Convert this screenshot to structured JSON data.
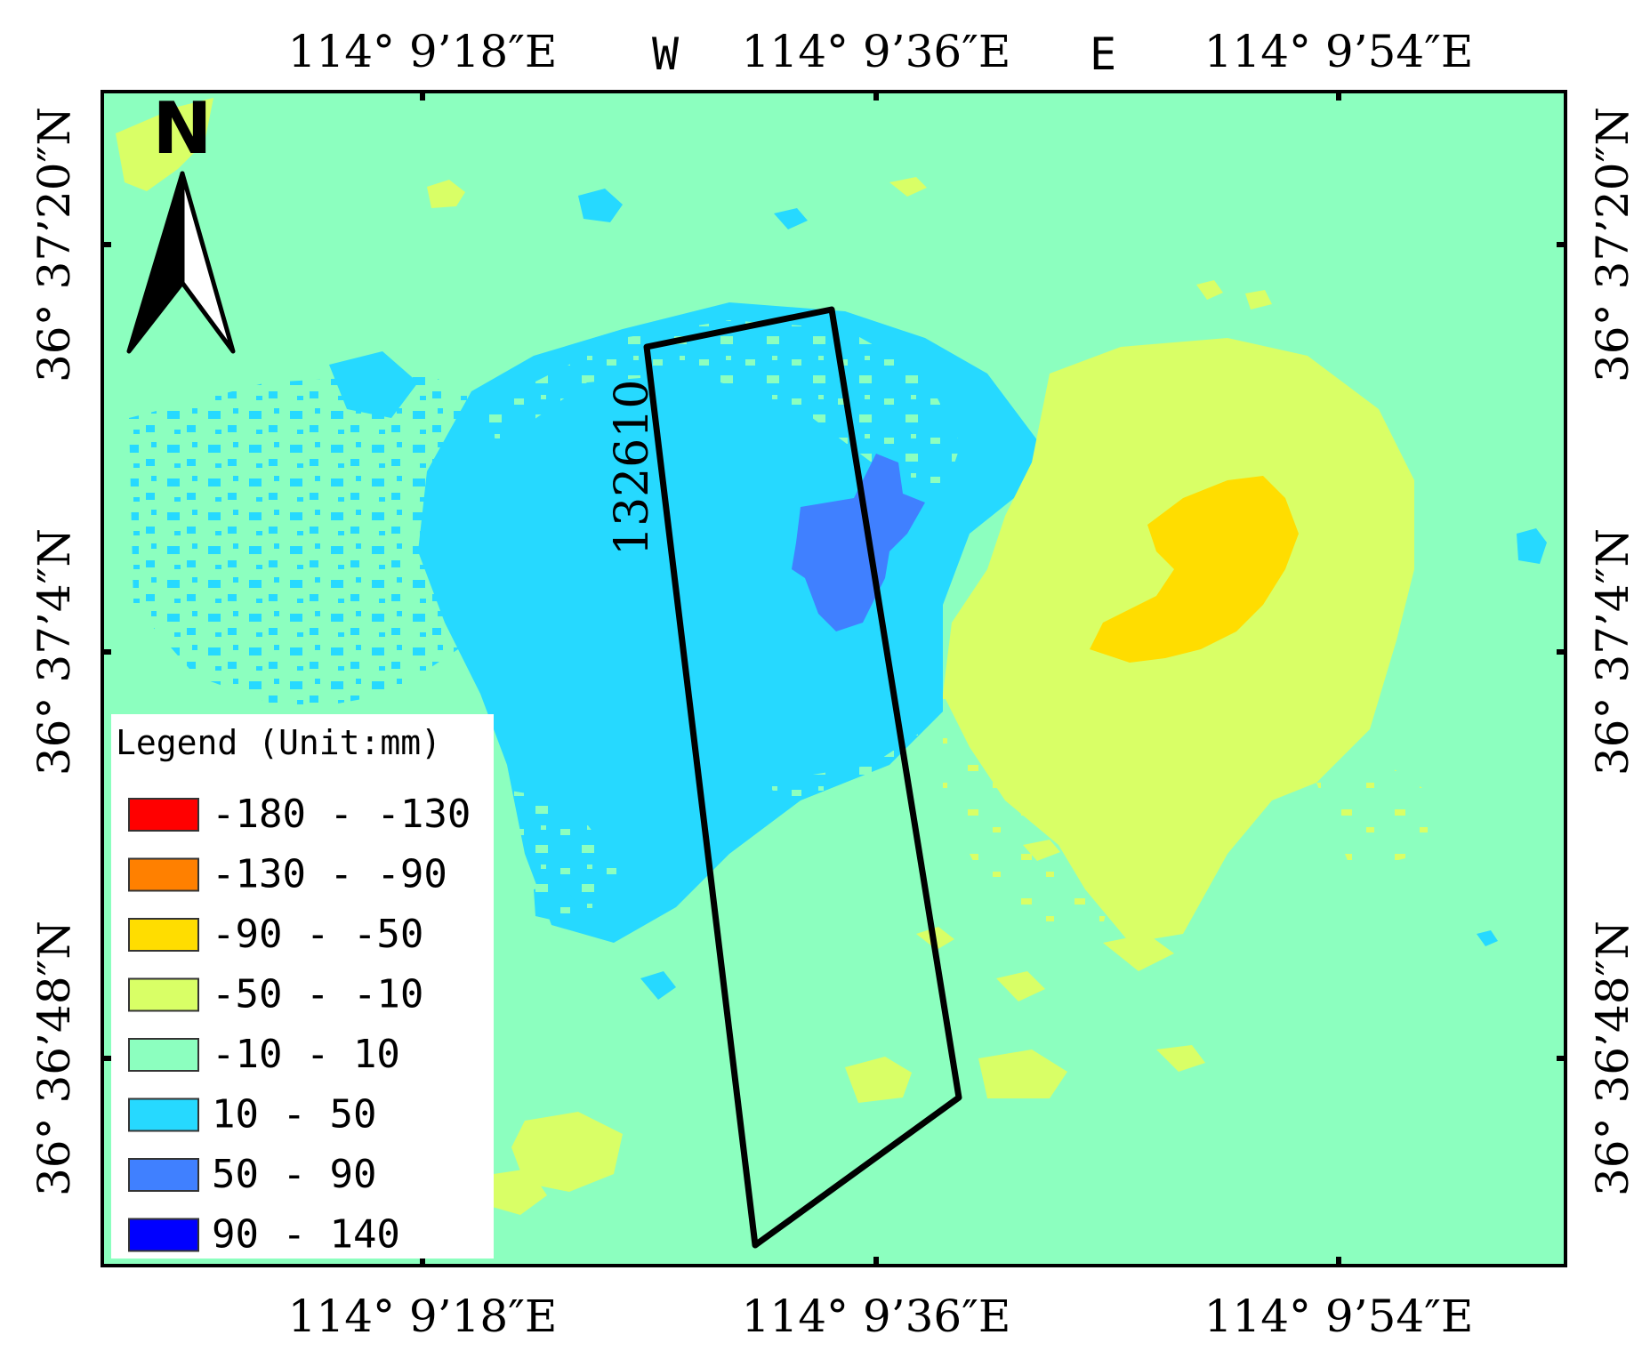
{
  "map": {
    "north_label": "N",
    "panel_id": "132610",
    "west_label": "W",
    "east_label": "E",
    "top_ticks": [
      "114° 9’18″E",
      "114° 9’36″E",
      "114° 9’54″E"
    ],
    "bottom_ticks": [
      "114° 9’18″E",
      "114° 9’36″E",
      "114° 9’54″E"
    ],
    "left_ticks": [
      "36° 37’20″N",
      "36° 37’4″N",
      "36° 36’48″N"
    ],
    "right_ticks": [
      "36° 37’20″N",
      "36° 37’4″N",
      "36° 36’48″N"
    ],
    "colors": {
      "background_class": "#8cffbf",
      "frame": "#000000"
    }
  },
  "legend": {
    "title": "Legend (Unit:mm)",
    "items": [
      {
        "label": "-180 - -130",
        "color": "#ff0000"
      },
      {
        "label": "-130 - -90",
        "color": "#ff8000"
      },
      {
        "label": "-90 - -50",
        "color": "#ffdd00"
      },
      {
        "label": "-50 - -10",
        "color": "#d9ff66"
      },
      {
        "label": "-10 - 10",
        "color": "#8cffbf"
      },
      {
        "label": "10 - 50",
        "color": "#26d9ff"
      },
      {
        "label": "50 - 90",
        "color": "#4080ff"
      },
      {
        "label": "90 - 140",
        "color": "#0000ff"
      }
    ]
  }
}
